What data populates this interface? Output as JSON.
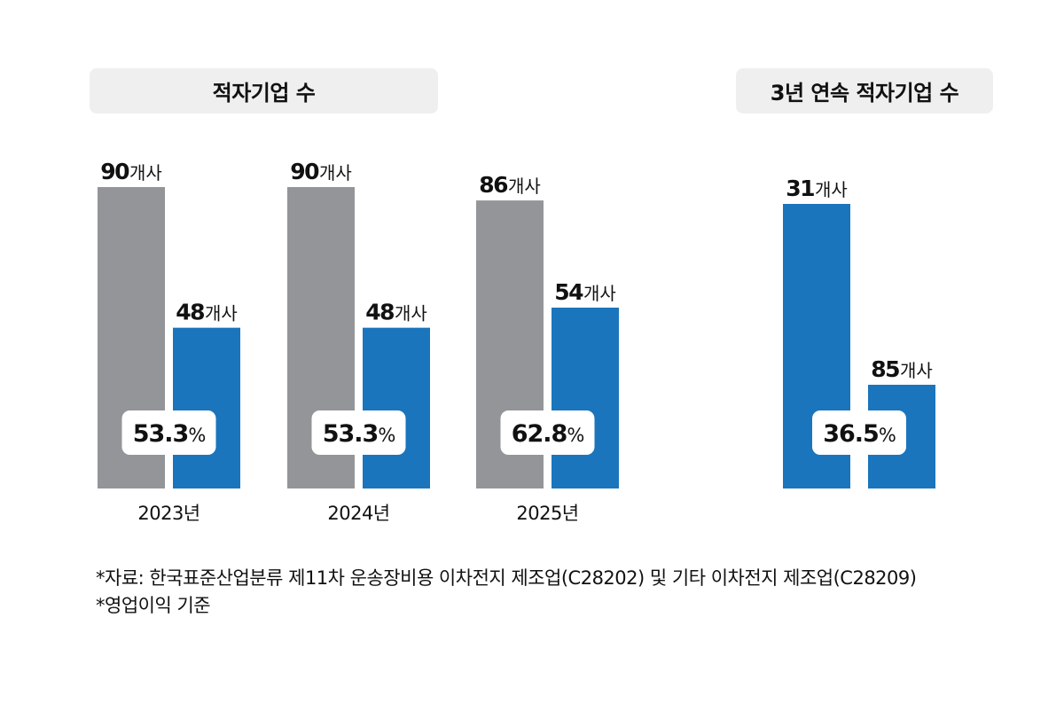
{
  "panel_left_title": "적자기업 수",
  "panel_right_title": "3년 연속 적자기업 수",
  "notes": [
    "*자료:  한국표준산업분류 제11차 운송장비용 이차전지 제조업(C28202) 및 기타 이차전지 제조업(C28209)",
    "*영업이익 기준"
  ],
  "colors": {
    "gray_bar": "#939598",
    "blue_bar": "#1a75bc",
    "title_bg": "#efefef"
  },
  "chart_data": [
    {
      "type": "bar",
      "title": "적자기업 수",
      "categories": [
        "2023년",
        "2024년",
        "2025년"
      ],
      "unit": "개사",
      "series": [
        {
          "values": [
            90,
            90,
            86
          ],
          "color": "#939598"
        },
        {
          "values": [
            48,
            48,
            54
          ],
          "color": "#1a75bc"
        }
      ],
      "ratios": [
        "53.3%",
        "53.3%",
        "62.8%"
      ],
      "ylim": [
        0,
        90
      ]
    },
    {
      "type": "bar",
      "title": "3년 연속 적자기업 수",
      "categories": [
        ""
      ],
      "unit": "개사",
      "series": [
        {
          "values": [
            31
          ],
          "color": "#1a75bc",
          "value_label": "31"
        },
        {
          "values": [
            85
          ],
          "color": "#1a75bc",
          "value_label": "85"
        }
      ],
      "ratios": [
        "36.5%"
      ]
    }
  ]
}
